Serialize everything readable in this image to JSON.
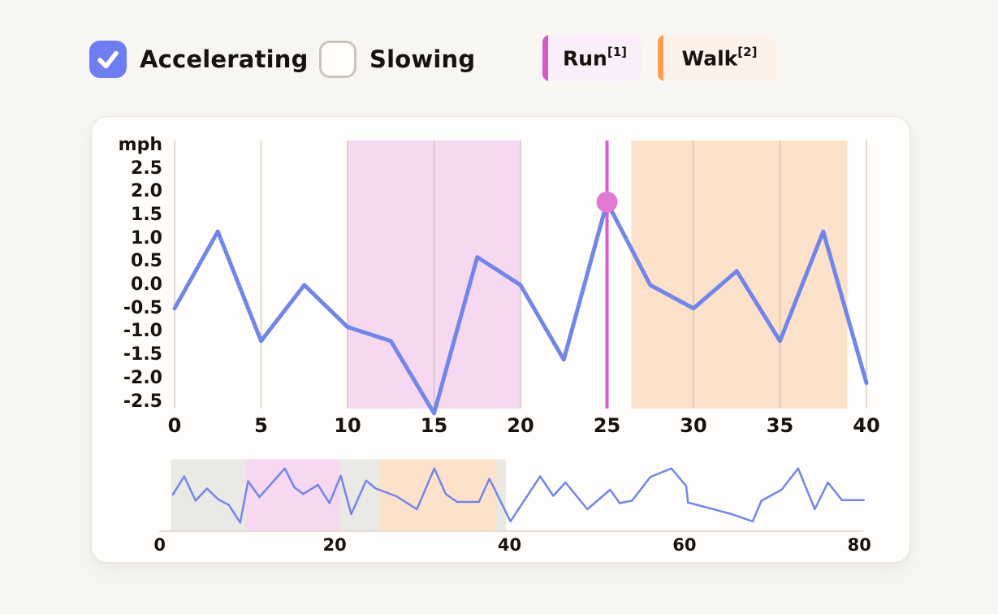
{
  "page": {
    "bg": "#f7f6f2",
    "card_bg": "#fefdfb",
    "card_border": "#e8e5df",
    "text_color": "#17140f"
  },
  "controls": {
    "checkboxes": [
      {
        "label": "Accelerating",
        "checked": true,
        "box_color": "#6e7ef0",
        "check_color": "#ffffff"
      },
      {
        "label": "Slowing",
        "checked": false,
        "box_border": "#cbc6b9"
      }
    ],
    "legend": [
      {
        "label": "Run",
        "superscript": "[1]",
        "bar_color": "#d45cc8",
        "bg": "#f9eef9"
      },
      {
        "label": "Walk",
        "superscript": "[2]",
        "bar_color": "#f99e52",
        "bg": "#fdf2e9"
      }
    ]
  },
  "chart_data": [
    {
      "type": "line",
      "role": "main-detail-chart",
      "ylabel": "mph",
      "xlim": [
        0,
        40
      ],
      "ylim": [
        -2.85,
        3.1
      ],
      "grid": "vertical-only",
      "x_ticks": [
        0,
        5,
        10,
        15,
        20,
        25,
        30,
        35,
        40
      ],
      "x_tick_labels": [
        "0",
        "5",
        "10",
        "15",
        "20",
        "25",
        "30",
        "35",
        "40"
      ],
      "y_ticks": [
        2.5,
        2.0,
        1.5,
        1.0,
        0.5,
        0.0,
        -0.5,
        -1.0,
        -1.5,
        -2.0,
        -2.5
      ],
      "y_tick_labels": [
        "2.5",
        "2.0",
        "1.5",
        "1.0",
        "0.5",
        "0.0",
        "-0.5",
        "-1.0",
        "-1.5",
        "-2.0",
        "-2.5"
      ],
      "series": [
        {
          "name": "acceleration-mph",
          "color": "#7186e8",
          "x": [
            0,
            2.5,
            5,
            7.5,
            10,
            12.5,
            15,
            17.5,
            20,
            22.5,
            25,
            27.5,
            30,
            32.5,
            35,
            37.5,
            40
          ],
          "y": [
            -0.5,
            1.15,
            -1.2,
            0.0,
            -0.9,
            -1.2,
            -2.75,
            0.6,
            0.0,
            -1.6,
            1.78,
            0.0,
            -0.5,
            0.3,
            -1.2,
            1.15,
            -2.1
          ]
        }
      ],
      "regions": [
        {
          "label": "Run",
          "x0": 10,
          "x1": 20,
          "color": "#f7d8f1"
        },
        {
          "label": "Walk",
          "x0": 26.4,
          "x1": 38.9,
          "color": "#fde2cb"
        }
      ],
      "marker": {
        "x": 25,
        "value": 1.78,
        "line_color": "#d95fce",
        "dot_color": "#e07ad4"
      }
    },
    {
      "type": "line",
      "role": "overview-brush-chart",
      "xlim": [
        0,
        80.5
      ],
      "ylim": [
        -2.9,
        2.3
      ],
      "x_ticks": [
        0,
        20,
        40,
        60,
        80
      ],
      "x_tick_labels": [
        "0",
        "20",
        "40",
        "60",
        "80"
      ],
      "series": [
        {
          "name": "acceleration-mph-overview",
          "color": "#7186e8",
          "x": [
            1.5,
            2.8,
            4.1,
            5.4,
            6.7,
            7.9,
            9.2,
            10.1,
            11.4,
            14.3,
            15.4,
            16.4,
            18.1,
            19.4,
            20.7,
            21.9,
            23.6,
            24.7,
            27.1,
            29.4,
            31.4,
            32.7,
            34.0,
            36.5,
            37.7,
            40.1,
            43.5,
            45.0,
            46.4,
            48.9,
            51.5,
            52.6,
            54.0,
            56.1,
            58.5,
            60.2,
            60.4,
            62.8,
            65.4,
            67.8,
            68.8,
            71.1,
            73.0,
            74.9,
            76.4,
            78.0,
            80.5
          ],
          "y": [
            -0.4,
            1.1,
            -0.9,
            0.1,
            -0.8,
            -1.25,
            -2.7,
            0.7,
            -0.6,
            1.75,
            0.2,
            -0.35,
            0.4,
            -1.1,
            1.15,
            -2.0,
            0.75,
            0.1,
            -0.55,
            -1.6,
            1.75,
            -0.35,
            -1.0,
            -1.0,
            0.9,
            -2.6,
            1.1,
            -0.5,
            0.6,
            -1.6,
            0.0,
            -1.1,
            -0.9,
            1.05,
            1.75,
            0.3,
            -1.05,
            -1.5,
            -2.0,
            -2.6,
            -0.9,
            0.0,
            1.75,
            -1.6,
            0.6,
            -0.85,
            -0.85
          ]
        }
      ],
      "regions": [
        {
          "label": "viewport",
          "x0": 1.3,
          "x1": 39.6,
          "color": "#ebe9e5"
        },
        {
          "label": "Run",
          "x0": 9.8,
          "x1": 20.6,
          "color": "#f7d8f1"
        },
        {
          "label": "Walk",
          "x0": 25.1,
          "x1": 38.5,
          "color": "#fde2cb"
        }
      ]
    }
  ]
}
